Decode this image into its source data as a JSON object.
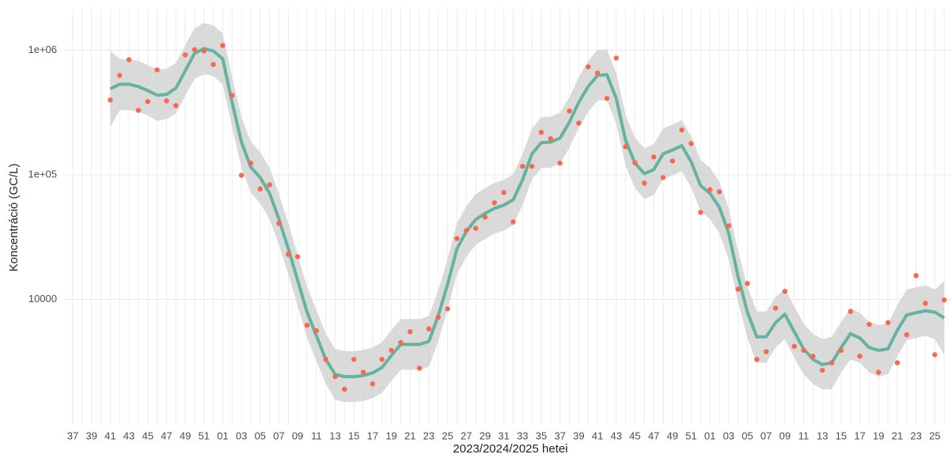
{
  "chart_data": {
    "type": "line",
    "x_label": "2023/2024/2025 hetei",
    "y_label": "Koncentráció (GC/L)",
    "log_y": true,
    "grid": true,
    "ylim": [
      1000,
      2000000
    ],
    "yticks": [
      10000,
      {
        "value": 100000,
        "label": "1e+05"
      },
      {
        "value": 1000000,
        "label": "1e+06"
      }
    ],
    "categories": [
      "37",
      null,
      "39",
      null,
      "41",
      null,
      "43",
      null,
      "45",
      null,
      "47",
      null,
      "49",
      null,
      "51",
      null,
      "01",
      null,
      "03",
      null,
      "05",
      null,
      "07",
      null,
      "09",
      null,
      "11",
      null,
      "13",
      null,
      "15",
      null,
      "17",
      null,
      "19",
      null,
      "21",
      null,
      "23",
      null,
      "25",
      null,
      "27",
      null,
      "29",
      null,
      "31",
      null,
      "33",
      null,
      "35",
      null,
      "37",
      null,
      "39",
      null,
      "41",
      null,
      "43",
      null,
      "45",
      null,
      "47",
      null,
      "49",
      null,
      "51",
      null,
      "01",
      null,
      "03",
      null,
      "05",
      null,
      "07",
      null,
      "09",
      null,
      "11",
      null,
      "13",
      null,
      "15",
      null,
      "17",
      null,
      "19",
      null,
      "21",
      null,
      "23",
      null,
      "25",
      null
    ],
    "series": [
      {
        "type": "scatter",
        "color": "#f8674f",
        "values": [
          null,
          null,
          null,
          null,
          398000,
          627000,
          839000,
          329000,
          387000,
          694000,
          392000,
          359000,
          916000,
          1010000,
          985000,
          768000,
          1090000,
          434000,
          99000,
          124000,
          77000,
          83000,
          40700,
          23000,
          22000,
          6200,
          5600,
          3300,
          2400,
          1900,
          3300,
          2600,
          2100,
          3300,
          3900,
          4500,
          5500,
          2800,
          5800,
          7200,
          8400,
          30800,
          35700,
          37200,
          45700,
          59600,
          72000,
          41900,
          117000,
          117000,
          219000,
          195000,
          124000,
          325000,
          260000,
          736000,
          655000,
          410000,
          864000,
          168000,
          125000,
          85700,
          139000,
          95000,
          129000,
          229000,
          178000,
          49900,
          76000,
          73000,
          38900,
          12100,
          13400,
          3300,
          3800,
          8500,
          11600,
          4200,
          3900,
          3500,
          2700,
          3100,
          3900,
          8000,
          3500,
          6300,
          2600,
          6500,
          3100,
          5200,
          15500,
          9300,
          3600,
          9900
        ]
      },
      {
        "type": "smooth",
        "color": "#66b2a0",
        "band_color": "#d3d3d3",
        "values": [
          null,
          null,
          null,
          null,
          489000,
          533000,
          533000,
          510000,
          474000,
          435000,
          441000,
          496000,
          684000,
          944000,
          1030000,
          986000,
          851000,
          381000,
          183000,
          115000,
          95000,
          71000,
          44000,
          25500,
          14200,
          7900,
          5100,
          3300,
          2500,
          2400,
          2400,
          2450,
          2570,
          2840,
          3540,
          4350,
          4350,
          4350,
          4600,
          7400,
          13200,
          25500,
          35000,
          43800,
          49000,
          53700,
          57000,
          63000,
          91000,
          147000,
          181000,
          183000,
          197000,
          264000,
          381000,
          510000,
          627000,
          636000,
          410000,
          189000,
          124000,
          102000,
          110000,
          147000,
          158000,
          171000,
          127000,
          82000,
          71000,
          55000,
          34000,
          15300,
          7900,
          5000,
          5000,
          6500,
          7600,
          5500,
          4000,
          3300,
          3000,
          3100,
          4100,
          5300,
          4900,
          4100,
          3900,
          4000,
          5650,
          7500,
          7800,
          8100,
          7900,
          7100
        ],
        "lower": [
          null,
          null,
          null,
          null,
          240000,
          330000,
          330000,
          320000,
          300000,
          270000,
          280000,
          310000,
          430000,
          590000,
          640000,
          620000,
          530000,
          240000,
          114000,
          72000,
          59000,
          44000,
          27500,
          15900,
          8900,
          4900,
          3200,
          2100,
          1560,
          1500,
          1500,
          1530,
          1610,
          1780,
          2210,
          2720,
          2720,
          2720,
          2880,
          4600,
          8300,
          15900,
          21900,
          27400,
          30600,
          33600,
          35600,
          39400,
          57000,
          92000,
          113000,
          114000,
          123000,
          165000,
          238000,
          319000,
          392000,
          398000,
          256000,
          118000,
          78000,
          64000,
          69000,
          92000,
          99000,
          107000,
          79000,
          51000,
          44000,
          34000,
          21000,
          9600,
          4900,
          3100,
          3100,
          4100,
          4800,
          3400,
          2500,
          2100,
          1900,
          1900,
          2600,
          3300,
          3100,
          2600,
          2400,
          2500,
          3500,
          4700,
          4900,
          5100,
          4800,
          3600
        ],
        "upper": [
          null,
          null,
          null,
          null,
          980000,
          850000,
          850000,
          820000,
          760000,
          700000,
          710000,
          790000,
          1090000,
          1510000,
          1650000,
          1580000,
          1360000,
          610000,
          290000,
          184000,
          152000,
          114000,
          70000,
          41000,
          22700,
          12600,
          8200,
          5300,
          4000,
          3840,
          3840,
          3920,
          4110,
          4540,
          5660,
          6960,
          6960,
          6960,
          7360,
          11800,
          21100,
          41000,
          56000,
          70000,
          78000,
          86000,
          91000,
          101000,
          146000,
          235000,
          290000,
          293000,
          315000,
          422000,
          610000,
          816000,
          1000000,
          1020000,
          656000,
          302000,
          198000,
          163000,
          176000,
          235000,
          253000,
          274000,
          203000,
          131000,
          114000,
          88000,
          54000,
          24500,
          12600,
          8000,
          8000,
          10400,
          12200,
          8800,
          6400,
          5300,
          4800,
          5000,
          6600,
          8500,
          7800,
          6600,
          6200,
          6400,
          9000,
          12000,
          12500,
          13000,
          12000,
          14000
        ]
      }
    ]
  }
}
